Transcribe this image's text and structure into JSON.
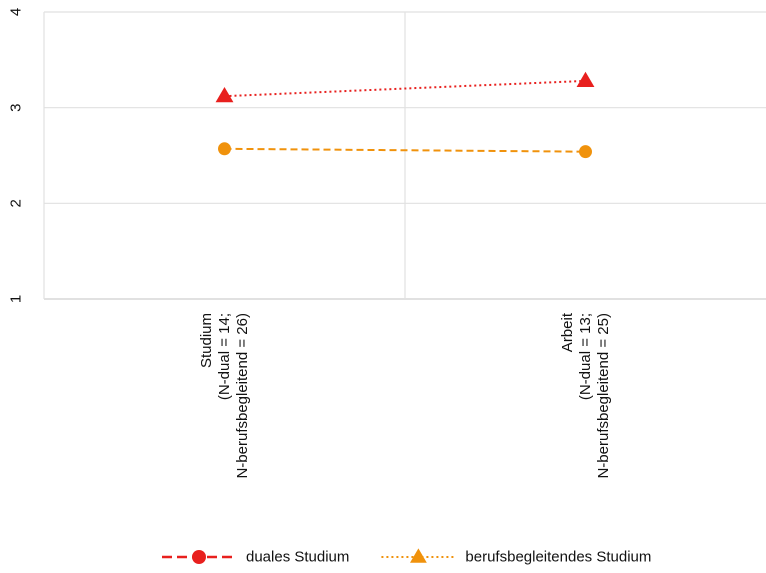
{
  "chart_data": {
    "type": "line",
    "title": "",
    "xlabel": "",
    "ylabel": "",
    "ylim": [
      1,
      4
    ],
    "yticks": [
      "1",
      "2",
      "3",
      "4"
    ],
    "grid": true,
    "legend_position": "bottom",
    "categories": [
      [
        "Studium",
        "(N-dual = 14;",
        "N-berufsbegleitend = 26)"
      ],
      [
        "Arbeit",
        "(N-dual = 13;",
        "N-berufsbegleitend = 25)"
      ]
    ],
    "series": [
      {
        "name": "duales Studium",
        "values": [
          2.57,
          2.54
        ],
        "marker": "circle",
        "line_style": "dashed",
        "line_color": "#f0920c",
        "marker_color": "#f0920c",
        "legend_line_color": "#e8201e",
        "legend_marker_color": "#e8201e"
      },
      {
        "name": "berufsbegleitendes Studium",
        "values": [
          3.12,
          3.28
        ],
        "marker": "triangle",
        "line_style": "dotted",
        "line_color": "#e8201e",
        "marker_color": "#e8201e",
        "legend_line_color": "#f0920c",
        "legend_marker_color": "#f0920c"
      }
    ]
  }
}
